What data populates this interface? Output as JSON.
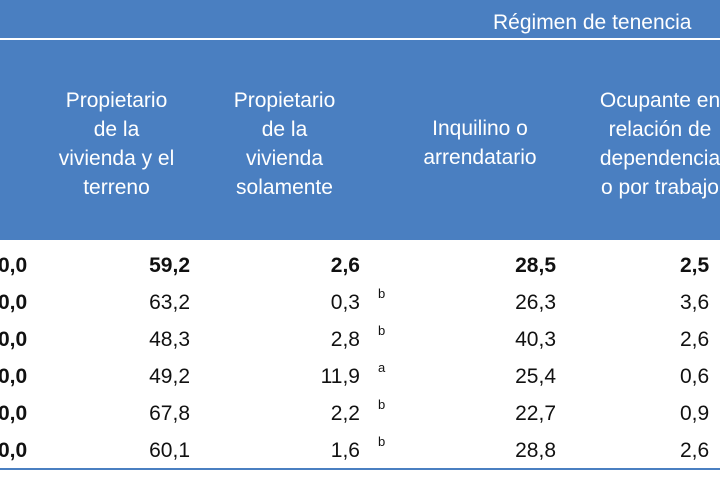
{
  "header": {
    "group_label": "Régimen de tenencia",
    "columns": [
      "Propietario\nde la\nvivienda y el\nterreno",
      "Propietario\nde la\nvivienda\nsolamente",
      "Inquilino o\narrendatario",
      "Ocupante en\nrelación de\ndependencia\no por trabajo"
    ]
  },
  "rows": [
    {
      "total": "0,0",
      "c1": "59,2",
      "c2": "2,6",
      "flag": "",
      "c3": "28,5",
      "c4": "2,5"
    },
    {
      "total": "0,0",
      "c1": "63,2",
      "c2": "0,3",
      "flag": "b",
      "c3": "26,3",
      "c4": "3,6"
    },
    {
      "total": "0,0",
      "c1": "48,3",
      "c2": "2,8",
      "flag": "b",
      "c3": "40,3",
      "c4": "2,6"
    },
    {
      "total": "0,0",
      "c1": "49,2",
      "c2": "11,9",
      "flag": "a",
      "c3": "25,4",
      "c4": "0,6"
    },
    {
      "total": "0,0",
      "c1": "67,8",
      "c2": "2,2",
      "flag": "b",
      "c3": "22,7",
      "c4": "0,9"
    },
    {
      "total": "0,0",
      "c1": "60,1",
      "c2": "1,6",
      "flag": "b",
      "c3": "28,8",
      "c4": "2,6"
    }
  ]
}
